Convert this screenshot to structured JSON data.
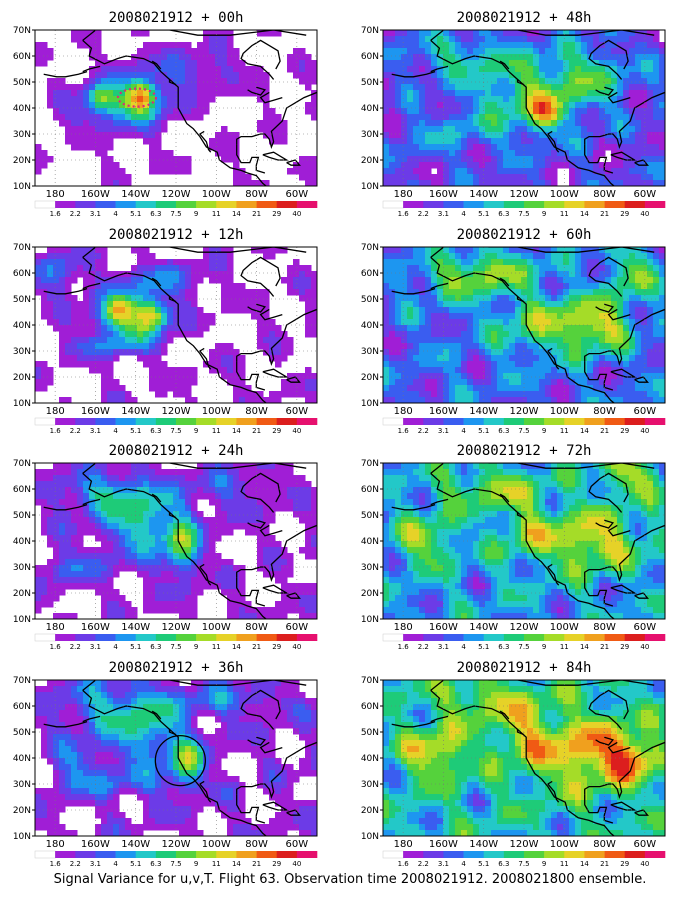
{
  "caption": "Signal Variance for u,v,T. Flight 63. Observation time 2008021912. 2008021800 ensemble.",
  "chart_data": {
    "type": "heatmap",
    "colorbar_levels": [
      "1.6",
      "2.2",
      "3.1",
      "4",
      "5.1",
      "6.3",
      "7.5",
      "9",
      "11",
      "14",
      "21",
      "29",
      "40"
    ],
    "colorbar_colors": [
      "#ffffff",
      "#a01ed6",
      "#6c3be7",
      "#3a5df0",
      "#1d96f0",
      "#23c8c8",
      "#1ecb78",
      "#55d23c",
      "#a5dc28",
      "#e6d228",
      "#f0a01e",
      "#f05a14",
      "#dc1e1e",
      "#e6106e"
    ],
    "lat_ticks": [
      "10N",
      "20N",
      "30N",
      "40N",
      "50N",
      "60N",
      "70N"
    ],
    "lon_ticks": [
      "180",
      "160W",
      "140W",
      "120W",
      "100W",
      "80W",
      "60W"
    ],
    "lon_range": [
      -190,
      -60
    ],
    "lat_range": [
      10,
      70
    ],
    "grid": true,
    "panels": [
      {
        "title": "2008021912 + 00h",
        "lead_hours": 0,
        "column": 0,
        "row": 0
      },
      {
        "title": "2008021912 + 12h",
        "lead_hours": 12,
        "column": 0,
        "row": 1
      },
      {
        "title": "2008021912 + 24h",
        "lead_hours": 24,
        "column": 0,
        "row": 2
      },
      {
        "title": "2008021912 + 36h",
        "lead_hours": 36,
        "column": 0,
        "row": 3
      },
      {
        "title": "2008021912 + 48h",
        "lead_hours": 48,
        "column": 1,
        "row": 0
      },
      {
        "title": "2008021912 + 60h",
        "lead_hours": 60,
        "column": 1,
        "row": 1
      },
      {
        "title": "2008021912 + 72h",
        "lead_hours": 72,
        "column": 1,
        "row": 2
      },
      {
        "title": "2008021912 + 84h",
        "lead_hours": 84,
        "column": 1,
        "row": 3
      }
    ]
  }
}
